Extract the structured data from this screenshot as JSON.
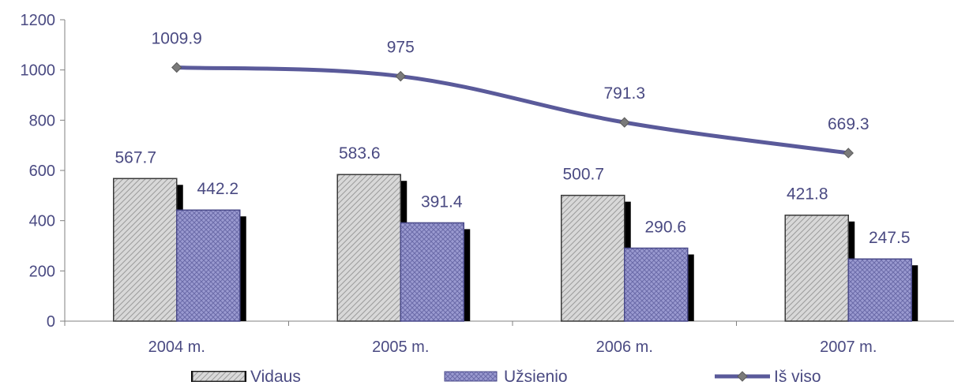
{
  "chart_data": {
    "type": "bar",
    "categories": [
      "2004 m.",
      "2005 m.",
      "2006 m.",
      "2007 m."
    ],
    "series": [
      {
        "name": "Vidaus",
        "kind": "bar",
        "values": [
          567.7,
          583.6,
          500.7,
          421.8
        ],
        "labels": [
          "567.7",
          "583.6",
          "500.7",
          "421.8"
        ],
        "color": "#c8c8c8",
        "pattern": "diagonal-stripes"
      },
      {
        "name": "Užsienio",
        "kind": "bar",
        "values": [
          442.2,
          391.4,
          290.6,
          247.5
        ],
        "labels": [
          "442.2",
          "391.4",
          "290.6",
          "247.5"
        ],
        "color": "#8f8fc4",
        "pattern": "crosshatch"
      },
      {
        "name": "Iš viso",
        "kind": "line",
        "values": [
          1009.9,
          975,
          791.3,
          669.3
        ],
        "labels": [
          "1009.9",
          "975",
          "791.3",
          "669.3"
        ],
        "color": "#5a5a9a",
        "marker": "diamond"
      }
    ],
    "ylim": [
      0,
      1200
    ],
    "yticks": [
      "0",
      "200",
      "400",
      "600",
      "800",
      "1000",
      "1200"
    ],
    "grid": false,
    "legend_position": "bottom",
    "text_color": "#4a4a82"
  }
}
